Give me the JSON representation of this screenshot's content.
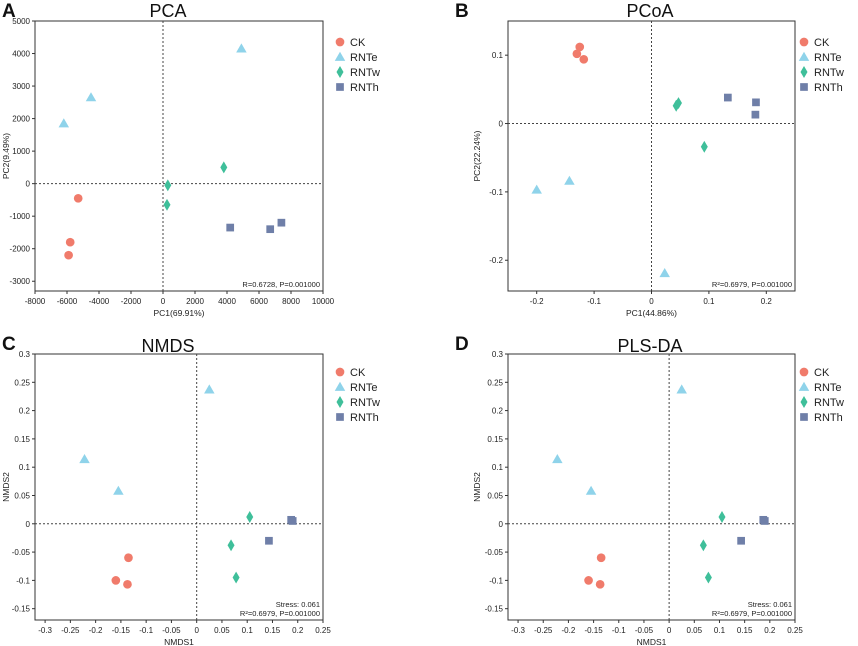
{
  "figure": {
    "legend_groups": [
      {
        "name": "CK",
        "color": "#f07b6b",
        "marker": "circle"
      },
      {
        "name": "RNTe",
        "color": "#8fd3ea",
        "marker": "triangle"
      },
      {
        "name": "RNTw",
        "color": "#3fbf9a",
        "marker": "diamond"
      },
      {
        "name": "RNTh",
        "color": "#6f7fa8",
        "marker": "square"
      }
    ]
  },
  "chart_data": [
    {
      "panel_letter": "A",
      "type": "scatter",
      "title": "PCA",
      "xlabel": "PC1(69.91%)",
      "ylabel": "PC2(9.49%)",
      "xlim": [
        -8000,
        10000
      ],
      "ylim": [
        -3300,
        5000
      ],
      "xticks": [
        -8000,
        -6000,
        -4000,
        -2000,
        0,
        2000,
        4000,
        6000,
        8000,
        10000
      ],
      "yticks": [
        -3000,
        -2000,
        -1000,
        0,
        1000,
        2000,
        3000,
        4000,
        5000
      ],
      "xtick_labels": [
        "-8000",
        "-6000",
        "-4000",
        "-2000",
        "0",
        "2000",
        "4000",
        "6000",
        "8000",
        "10000"
      ],
      "ytick_labels": [
        "-3000",
        "-2000",
        "-1000",
        "0",
        "1000",
        "2000",
        "3000",
        "4000",
        "5000"
      ],
      "annotation_lines": [
        "R=0.6728, P=0.001000"
      ],
      "series": [
        {
          "name": "CK",
          "points": [
            [
              -5300,
              -450
            ],
            [
              -5800,
              -1800
            ],
            [
              -5900,
              -2200
            ]
          ]
        },
        {
          "name": "RNTe",
          "points": [
            [
              4900,
              4150
            ],
            [
              -4500,
              2650
            ],
            [
              -6200,
              1850
            ]
          ]
        },
        {
          "name": "RNTw",
          "points": [
            [
              3800,
              500
            ],
            [
              300,
              -50
            ],
            [
              250,
              -650
            ]
          ]
        },
        {
          "name": "RNTh",
          "points": [
            [
              4200,
              -1350
            ],
            [
              6700,
              -1400
            ],
            [
              7400,
              -1200
            ]
          ]
        }
      ]
    },
    {
      "panel_letter": "B",
      "type": "scatter",
      "title": "PCoA",
      "xlabel": "PC1(44.86%)",
      "ylabel": "PC2(22.24%)",
      "xlim": [
        -0.25,
        0.25
      ],
      "ylim": [
        -0.245,
        0.15
      ],
      "xticks": [
        -0.2,
        -0.1,
        0,
        0.1,
        0.2
      ],
      "yticks": [
        -0.2,
        -0.1,
        0,
        0.1
      ],
      "xtick_labels": [
        "-0.2",
        "-0.1",
        "0",
        "0.1",
        "0.2"
      ],
      "ytick_labels": [
        "-0.2",
        "-0.1",
        "0",
        "0.1"
      ],
      "annotation_lines": [
        "R²=0.6979, P=0.001000"
      ],
      "series": [
        {
          "name": "CK",
          "points": [
            [
              -0.125,
              0.112
            ],
            [
              -0.13,
              0.102
            ],
            [
              -0.118,
              0.094
            ]
          ]
        },
        {
          "name": "RNTe",
          "points": [
            [
              -0.2,
              -0.097
            ],
            [
              -0.143,
              -0.084
            ],
            [
              0.023,
              -0.219
            ]
          ]
        },
        {
          "name": "RNTw",
          "points": [
            [
              0.043,
              0.026
            ],
            [
              0.047,
              0.03
            ],
            [
              0.092,
              -0.034
            ]
          ]
        },
        {
          "name": "RNTh",
          "points": [
            [
              0.133,
              0.038
            ],
            [
              0.182,
              0.031
            ],
            [
              0.181,
              0.013
            ]
          ]
        }
      ]
    },
    {
      "panel_letter": "C",
      "type": "scatter",
      "title": "NMDS",
      "xlabel": "NMDS1",
      "ylabel": "NMDS2",
      "xlim": [
        -0.32,
        0.25
      ],
      "ylim": [
        -0.17,
        0.3
      ],
      "xticks": [
        -0.3,
        -0.25,
        -0.2,
        -0.15,
        -0.1,
        -0.05,
        0,
        0.05,
        0.1,
        0.15,
        0.2,
        0.25
      ],
      "yticks": [
        -0.15,
        -0.1,
        -0.05,
        0,
        0.05,
        0.1,
        0.15,
        0.2,
        0.25,
        0.3
      ],
      "xtick_labels": [
        "-0.3",
        "-0.25",
        "-0.2",
        "-0.15",
        "-0.1",
        "-0.05",
        "0",
        "0.05",
        "0.1",
        "0.15",
        "0.2",
        "0.25"
      ],
      "ytick_labels": [
        "-0.15",
        "-0.1",
        "-0.05",
        "0",
        "0.05",
        "0.1",
        "0.15",
        "0.2",
        "0.25",
        "0.3"
      ],
      "annotation_lines": [
        "Stress: 0.061",
        "R²=0.6979, P=0.001000"
      ],
      "series": [
        {
          "name": "CK",
          "points": [
            [
              -0.135,
              -0.06
            ],
            [
              -0.16,
              -0.1
            ],
            [
              -0.137,
              -0.107
            ]
          ]
        },
        {
          "name": "RNTe",
          "points": [
            [
              0.025,
              0.237
            ],
            [
              -0.222,
              0.114
            ],
            [
              -0.155,
              0.058
            ]
          ]
        },
        {
          "name": "RNTw",
          "points": [
            [
              0.105,
              0.012
            ],
            [
              0.068,
              -0.038
            ],
            [
              0.078,
              -0.095
            ]
          ]
        },
        {
          "name": "RNTh",
          "points": [
            [
              0.187,
              0.007
            ],
            [
              0.19,
              0.005
            ],
            [
              0.143,
              -0.03
            ]
          ]
        }
      ]
    },
    {
      "panel_letter": "D",
      "type": "scatter",
      "title": "PLS-DA",
      "xlabel": "NMDS1",
      "ylabel": "NMDS2",
      "xlim": [
        -0.32,
        0.25
      ],
      "ylim": [
        -0.17,
        0.3
      ],
      "xticks": [
        -0.3,
        -0.25,
        -0.2,
        -0.15,
        -0.1,
        -0.05,
        0,
        0.05,
        0.1,
        0.15,
        0.2,
        0.25
      ],
      "yticks": [
        -0.15,
        -0.1,
        -0.05,
        0,
        0.05,
        0.1,
        0.15,
        0.2,
        0.25,
        0.3
      ],
      "xtick_labels": [
        "-0.3",
        "-0.25",
        "-0.2",
        "-0.15",
        "-0.1",
        "-0.05",
        "0",
        "0.05",
        "0.1",
        "0.15",
        "0.2",
        "0.25"
      ],
      "ytick_labels": [
        "-0.15",
        "-0.1",
        "-0.05",
        "0",
        "0.05",
        "0.1",
        "0.15",
        "0.2",
        "0.25",
        "0.3"
      ],
      "annotation_lines": [
        "Stress: 0.061",
        "R²=0.6979, P=0.001000"
      ],
      "series": [
        {
          "name": "CK",
          "points": [
            [
              -0.135,
              -0.06
            ],
            [
              -0.16,
              -0.1
            ],
            [
              -0.137,
              -0.107
            ]
          ]
        },
        {
          "name": "RNTe",
          "points": [
            [
              0.025,
              0.237
            ],
            [
              -0.222,
              0.114
            ],
            [
              -0.155,
              0.058
            ]
          ]
        },
        {
          "name": "RNTw",
          "points": [
            [
              0.105,
              0.012
            ],
            [
              0.068,
              -0.038
            ],
            [
              0.078,
              -0.095
            ]
          ]
        },
        {
          "name": "RNTh",
          "points": [
            [
              0.187,
              0.007
            ],
            [
              0.19,
              0.005
            ],
            [
              0.143,
              -0.03
            ]
          ]
        }
      ]
    }
  ]
}
